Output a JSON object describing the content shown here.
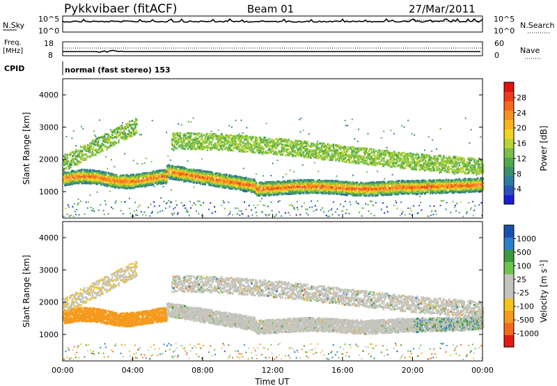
{
  "header": {
    "station": "Pykkvibaer (fitACF)",
    "beam": "Beam 01",
    "date": "27/Mar/2011"
  },
  "panels": {
    "nsky": {
      "left_label": "N.Sky",
      "left_ticks": [
        "10^5",
        "10^0"
      ],
      "right_label": "N.Search",
      "right_ticks": [
        "10^5",
        "10^0"
      ]
    },
    "freq": {
      "left_label_1": "Freq.",
      "left_label_2": "[MHz]",
      "left_ticks": [
        "18",
        "8"
      ],
      "right_label": "Nave",
      "right_ticks": [
        "60",
        "0"
      ]
    },
    "cpid": {
      "label": "CPID",
      "text": "normal (fast stereo) 153"
    }
  },
  "axes": {
    "ylabel": "Slant Range [km]",
    "xlabel": "Time UT",
    "x_ticks": [
      "00:00",
      "04:00",
      "08:00",
      "12:00",
      "16:00",
      "20:00",
      "00:00"
    ],
    "y_ticks": [
      "1000",
      "2000",
      "3000",
      "4000"
    ]
  },
  "colorbars": {
    "power": {
      "label": "Power [dB]",
      "ticks": [
        "4",
        "8",
        "12",
        "16",
        "20",
        "24",
        "28"
      ],
      "colors": [
        "#1b1bd8",
        "#2a52b8",
        "#2c7ea0",
        "#3a8f6c",
        "#52a84a",
        "#79c045",
        "#b9d334",
        "#f0d520",
        "#f9b21c",
        "#f79021",
        "#f46b1e",
        "#ee3b1a",
        "#e11212"
      ]
    },
    "velocity": {
      "label_main": "Velocity [m s",
      "label_sup": "-1",
      "label_end": "]",
      "ticks": [
        "1000",
        "500",
        "100",
        "25",
        "-25",
        "-100",
        "-500",
        "-1000"
      ],
      "colors": [
        "#1a4fb0",
        "#2a80c8",
        "#3b9a3c",
        "#6cc44a",
        "#c4c4bc",
        "#c4c4bc",
        "#f5c31e",
        "#f59a1e",
        "#f26a1a",
        "#e11a12"
      ]
    }
  },
  "chart_data": {
    "type": "heatmap",
    "xlabel": "Time UT",
    "ylabel": "Slant Range [km]",
    "xlim": [
      "00:00",
      "24:00"
    ],
    "ylim": [
      180,
      4500
    ],
    "panels": [
      {
        "quantity": "Power [dB]",
        "clim": [
          0,
          30
        ],
        "features": [
          {
            "t_start": 0.0,
            "t_end": 5.9,
            "range_km": 1420,
            "power_db": 26
          },
          {
            "t_start": 6.2,
            "t_end": 11.0,
            "range_km": 1250,
            "power_db": 28
          },
          {
            "t_start": 11.0,
            "t_end": 19.5,
            "range_km": 1150,
            "power_db": 28
          },
          {
            "t_start": 19.5,
            "t_end": 24.0,
            "range_km": 1150,
            "power_db": 22
          },
          {
            "t_start": 9.5,
            "t_end": 19.0,
            "range_km": 2300,
            "power_db": 12
          }
        ]
      },
      {
        "quantity": "Velocity [m s^-1]",
        "clim": [
          -1000,
          1000
        ],
        "features": [
          {
            "t_start": 0.5,
            "t_end": 5.8,
            "range_km": 1600,
            "velocity_ms": -500
          },
          {
            "t_start": 6.0,
            "t_end": 24.0,
            "range_km": 1300,
            "velocity_ms": 0
          },
          {
            "t_start": 20.0,
            "t_end": 24.0,
            "range_km": 900,
            "velocity_ms": 500
          }
        ]
      }
    ]
  }
}
